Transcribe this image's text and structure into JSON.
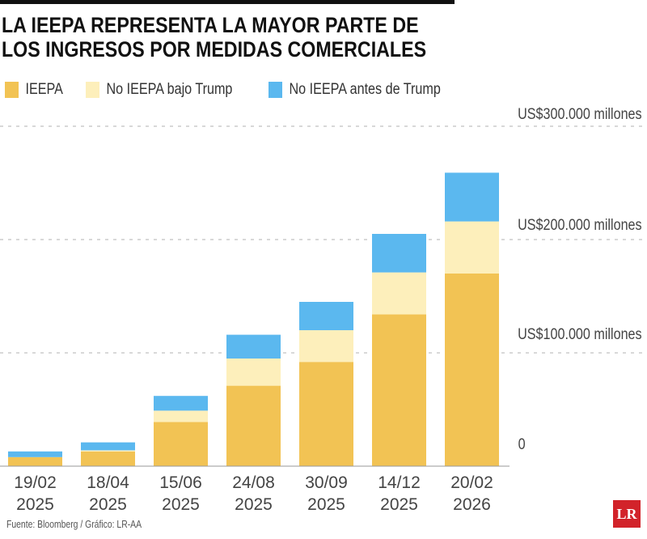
{
  "chart_data": {
    "type": "bar",
    "stacked": true,
    "title": "LA IEEPA REPRESENTA LA MAYOR PARTE DE LOS INGRESOS POR MEDIDAS COMERCIALES",
    "title_lines": [
      "LA IEEPA REPRESENTA LA MAYOR PARTE DE",
      "LOS INGRESOS POR MEDIDAS COMERCIALES"
    ],
    "categories": [
      [
        "19/02",
        "2025"
      ],
      [
        "18/04",
        "2025"
      ],
      [
        "15/06",
        "2025"
      ],
      [
        "24/08",
        "2025"
      ],
      [
        "30/09",
        "2025"
      ],
      [
        "14/12",
        "2025"
      ],
      [
        "20/02",
        "2026"
      ]
    ],
    "series": [
      {
        "name": "IEEPA",
        "color": "#f2c354",
        "values": [
          8,
          13,
          39,
          71,
          92,
          134,
          170
        ]
      },
      {
        "name": "No IEEPA bajo Trump",
        "color": "#fdefbb",
        "values": [
          0,
          1,
          10,
          24,
          28,
          37,
          46
        ]
      },
      {
        "name": "No IEEPA antes de Trump",
        "color": "#5bb8ef",
        "values": [
          5,
          7,
          13,
          21,
          25,
          34,
          43
        ]
      }
    ],
    "unit": "miles de millones US$",
    "ylim": [
      0,
      300
    ],
    "yticks": [
      {
        "value": 300,
        "label": "US$300.000 millones"
      },
      {
        "value": 200,
        "label": "US$200.000 millones"
      },
      {
        "value": 100,
        "label": "US$100.000 millones"
      },
      {
        "value": 0,
        "label": "0"
      }
    ],
    "grid": true,
    "legend": "top-left",
    "source": "Fuente: Bloomberg / Gráfico: LR-AA"
  },
  "logo": "LR"
}
